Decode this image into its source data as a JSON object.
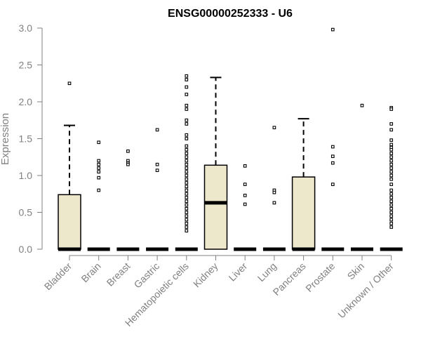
{
  "chart_data": {
    "type": "box",
    "title": "ENSG00000252333 - U6",
    "xlabel": "",
    "ylabel": "Expression",
    "ylim": [
      0,
      3.0
    ],
    "yticks": [
      "0.0",
      "0.5",
      "1.0",
      "1.5",
      "2.0",
      "2.5",
      "3.0"
    ],
    "categories": [
      "Bladder",
      "Brain",
      "Breast",
      "Gastric",
      "Hematopoietic cells",
      "Kidney",
      "Liver",
      "Lung",
      "Pancreas",
      "Prostate",
      "Skin",
      "Unknown / Other"
    ],
    "boxes": [
      {
        "category": "Bladder",
        "q1": 0,
        "median": 0,
        "q3": 0.74,
        "whisker_low": 0,
        "whisker_high": 1.68,
        "outliers": [
          2.25
        ]
      },
      {
        "category": "Brain",
        "q1": 0,
        "median": 0,
        "q3": 0,
        "whisker_low": 0,
        "whisker_high": 0,
        "outliers": [
          1.45,
          1.2,
          1.15,
          1.1,
          1.05,
          0.97,
          0.8
        ]
      },
      {
        "category": "Breast",
        "q1": 0,
        "median": 0,
        "q3": 0,
        "whisker_low": 0,
        "whisker_high": 0,
        "outliers": [
          1.33,
          1.2,
          1.17,
          1.15
        ]
      },
      {
        "category": "Gastric",
        "q1": 0,
        "median": 0,
        "q3": 0,
        "whisker_low": 0,
        "whisker_high": 0,
        "outliers": [
          1.62,
          1.15,
          1.07
        ]
      },
      {
        "category": "Hematopoietic cells",
        "q1": 0,
        "median": 0,
        "q3": 0,
        "whisker_low": 0,
        "whisker_high": 0,
        "outliers": [
          2.35,
          2.3,
          2.2,
          2.1,
          1.95,
          1.9,
          1.75,
          1.7,
          1.55,
          1.5,
          1.4,
          1.35,
          1.3,
          1.25,
          1.2,
          1.15,
          1.1,
          1.05,
          1.0,
          0.95,
          0.9,
          0.85,
          0.8,
          0.75,
          0.7,
          0.65,
          0.6,
          0.55,
          0.5,
          0.45,
          0.4,
          0.35,
          0.3,
          0.25
        ]
      },
      {
        "category": "Kidney",
        "q1": 0,
        "median": 0.63,
        "q3": 1.14,
        "whisker_low": 0,
        "whisker_high": 2.33,
        "outliers": []
      },
      {
        "category": "Liver",
        "q1": 0,
        "median": 0,
        "q3": 0,
        "whisker_low": 0,
        "whisker_high": 0,
        "outliers": [
          1.13,
          0.88,
          0.73,
          0.61
        ]
      },
      {
        "category": "Lung",
        "q1": 0,
        "median": 0,
        "q3": 0,
        "whisker_low": 0,
        "whisker_high": 0,
        "outliers": [
          1.65,
          0.8,
          0.77,
          0.63
        ]
      },
      {
        "category": "Pancreas",
        "q1": 0,
        "median": 0,
        "q3": 0.98,
        "whisker_low": 0,
        "whisker_high": 1.77,
        "outliers": []
      },
      {
        "category": "Prostate",
        "q1": 0,
        "median": 0,
        "q3": 0,
        "whisker_low": 0,
        "whisker_high": 0,
        "outliers": [
          2.98,
          1.39,
          1.26,
          1.17,
          0.88
        ]
      },
      {
        "category": "Skin",
        "q1": 0,
        "median": 0,
        "q3": 0,
        "whisker_low": 0,
        "whisker_high": 0,
        "outliers": [
          1.95
        ]
      },
      {
        "category": "Unknown / Other",
        "q1": 0,
        "median": 0,
        "q3": 0,
        "whisker_low": 0,
        "whisker_high": 0,
        "outliers": [
          1.92,
          1.9,
          1.7,
          1.62,
          1.48,
          1.42,
          1.38,
          1.35,
          1.3,
          1.25,
          1.2,
          1.15,
          1.1,
          1.05,
          1.0,
          0.95,
          0.88,
          0.8,
          0.75,
          0.7,
          0.65,
          0.6,
          0.55,
          0.5,
          0.45,
          0.4,
          0.35,
          0.3
        ]
      }
    ],
    "box_fill": "#ede7cc",
    "box_stroke": "#000000",
    "axis_color": "#808080",
    "grid": false,
    "legend": "none"
  }
}
